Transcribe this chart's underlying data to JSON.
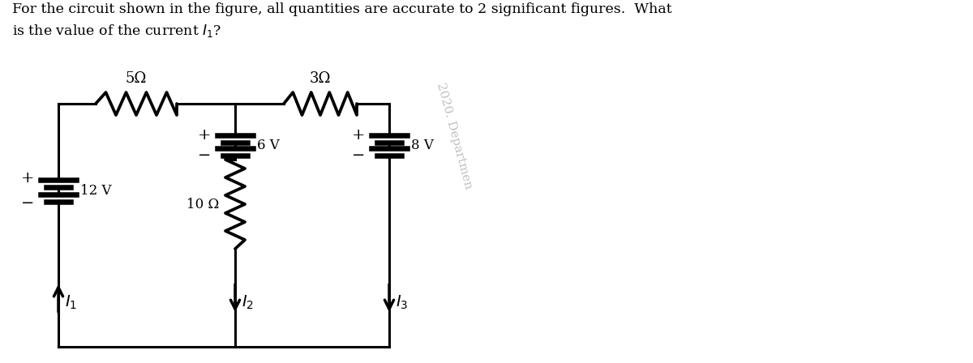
{
  "title_line1": "For the circuit shown in the figure, all quantities are accurate to 2 significant figures.  What",
  "title_line2": "is the value of the current $I_1$?",
  "bg_color": "#ffffff",
  "line_color": "#000000",
  "line_width": 2.2,
  "fig_width": 12.0,
  "fig_height": 4.48,
  "resistor_5_label": "5Ω",
  "resistor_3_label": "3Ω",
  "resistor_10_label": "10 Ω",
  "battery_12_label": "12 V",
  "battery_6_label": "6 V",
  "battery_8_label": "8 V",
  "current_1_label": "$I_1$",
  "current_2_label": "$I_2$",
  "current_3_label": "$I_3$",
  "watermark": "2020. Departmen"
}
